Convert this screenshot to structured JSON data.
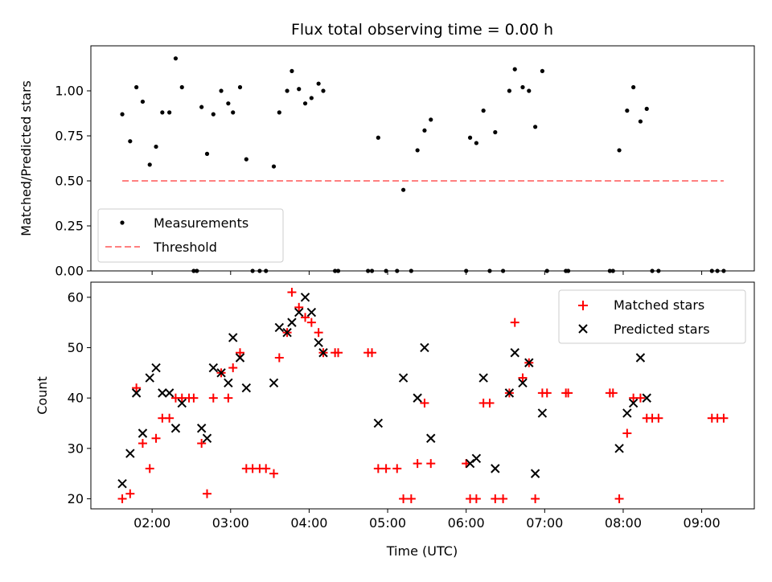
{
  "figure": {
    "title": "Flux total observing time = 0.00 h",
    "xlabel": "Time (UTC)",
    "x_ticks": [
      "02:00",
      "03:00",
      "04:00",
      "05:00",
      "06:00",
      "07:00",
      "08:00",
      "09:00"
    ]
  },
  "chart_data": [
    {
      "type": "scatter",
      "title": "Flux total observing time = 0.00 h",
      "ylabel": "Matched/Predicted stars",
      "xlim": [
        1.22,
        9.67
      ],
      "ylim": [
        0,
        1.25
      ],
      "y_ticks": [
        "0.00",
        "0.25",
        "0.50",
        "0.75",
        "1.00"
      ],
      "legend": {
        "placement": "lower-left",
        "entries": [
          "Measurements",
          "Threshold"
        ]
      },
      "grid": false,
      "series": [
        {
          "name": "Measurements",
          "marker": "dot",
          "color": "#000000",
          "points": [
            [
              1.62,
              0.87
            ],
            [
              1.72,
              0.72
            ],
            [
              1.8,
              1.02
            ],
            [
              1.88,
              0.94
            ],
            [
              1.97,
              0.59
            ],
            [
              2.05,
              0.69
            ],
            [
              2.13,
              0.88
            ],
            [
              2.22,
              0.88
            ],
            [
              2.3,
              1.18
            ],
            [
              2.38,
              1.02
            ],
            [
              2.63,
              0.91
            ],
            [
              2.7,
              0.65
            ],
            [
              2.78,
              0.87
            ],
            [
              2.88,
              1.0
            ],
            [
              2.97,
              0.93
            ],
            [
              3.03,
              0.88
            ],
            [
              3.12,
              1.02
            ],
            [
              3.2,
              0.62
            ],
            [
              3.55,
              0.58
            ],
            [
              3.62,
              0.88
            ],
            [
              3.72,
              1.0
            ],
            [
              3.78,
              1.11
            ],
            [
              3.87,
              1.01
            ],
            [
              3.95,
              0.93
            ],
            [
              4.03,
              0.96
            ],
            [
              4.12,
              1.04
            ],
            [
              4.18,
              1.0
            ],
            [
              4.88,
              0.74
            ],
            [
              5.2,
              0.45
            ],
            [
              5.38,
              0.67
            ],
            [
              5.47,
              0.78
            ],
            [
              5.55,
              0.84
            ],
            [
              6.05,
              0.74
            ],
            [
              6.13,
              0.71
            ],
            [
              6.22,
              0.89
            ],
            [
              6.37,
              0.77
            ],
            [
              6.55,
              1.0
            ],
            [
              6.62,
              1.12
            ],
            [
              6.72,
              1.02
            ],
            [
              6.8,
              1.0
            ],
            [
              6.88,
              0.8
            ],
            [
              6.97,
              1.11
            ],
            [
              7.95,
              0.67
            ],
            [
              8.05,
              0.89
            ],
            [
              8.13,
              1.02
            ],
            [
              8.22,
              0.83
            ],
            [
              8.3,
              0.9
            ],
            [
              2.53,
              0.0
            ],
            [
              2.57,
              0.0
            ],
            [
              3.28,
              0.0
            ],
            [
              3.37,
              0.0
            ],
            [
              3.45,
              0.0
            ],
            [
              4.33,
              0.0
            ],
            [
              4.37,
              0.0
            ],
            [
              4.75,
              0.0
            ],
            [
              4.8,
              0.0
            ],
            [
              4.98,
              0.0
            ],
            [
              5.12,
              0.0
            ],
            [
              5.3,
              0.0
            ],
            [
              6.0,
              0.0
            ],
            [
              6.3,
              0.0
            ],
            [
              6.47,
              0.0
            ],
            [
              7.03,
              0.0
            ],
            [
              7.27,
              0.0
            ],
            [
              7.3,
              0.0
            ],
            [
              7.83,
              0.0
            ],
            [
              7.87,
              0.0
            ],
            [
              8.37,
              0.0
            ],
            [
              8.45,
              0.0
            ],
            [
              9.13,
              0.0
            ],
            [
              9.2,
              0.0
            ],
            [
              9.28,
              0.0
            ]
          ]
        },
        {
          "name": "Threshold",
          "line": "dashed",
          "color": "#ff8080",
          "x": [
            1.62,
            9.28
          ],
          "y": [
            0.5,
            0.5
          ]
        }
      ]
    },
    {
      "type": "scatter",
      "ylabel": "Count",
      "xlim": [
        1.22,
        9.67
      ],
      "ylim": [
        18,
        63
      ],
      "y_ticks": [
        "20",
        "30",
        "40",
        "50",
        "60"
      ],
      "legend": {
        "placement": "top-right",
        "entries": [
          "Matched stars",
          "Predicted stars"
        ]
      },
      "grid": false,
      "series": [
        {
          "name": "Matched stars",
          "marker": "plus",
          "color": "#ff0000",
          "points": [
            [
              1.62,
              20
            ],
            [
              1.72,
              21
            ],
            [
              1.8,
              42
            ],
            [
              1.88,
              31
            ],
            [
              1.97,
              26
            ],
            [
              2.05,
              32
            ],
            [
              2.13,
              36
            ],
            [
              2.22,
              36
            ],
            [
              2.3,
              40
            ],
            [
              2.38,
              40
            ],
            [
              2.47,
              40
            ],
            [
              2.53,
              40
            ],
            [
              2.63,
              31
            ],
            [
              2.7,
              21
            ],
            [
              2.78,
              40
            ],
            [
              2.88,
              45
            ],
            [
              2.97,
              40
            ],
            [
              3.03,
              46
            ],
            [
              3.12,
              49
            ],
            [
              3.2,
              26
            ],
            [
              3.28,
              26
            ],
            [
              3.37,
              26
            ],
            [
              3.45,
              26
            ],
            [
              3.55,
              25
            ],
            [
              3.62,
              48
            ],
            [
              3.72,
              53
            ],
            [
              3.78,
              61
            ],
            [
              3.87,
              58
            ],
            [
              3.95,
              56
            ],
            [
              4.03,
              55
            ],
            [
              4.12,
              53
            ],
            [
              4.18,
              49
            ],
            [
              4.33,
              49
            ],
            [
              4.37,
              49
            ],
            [
              4.75,
              49
            ],
            [
              4.8,
              49
            ],
            [
              4.88,
              26
            ],
            [
              4.98,
              26
            ],
            [
              5.12,
              26
            ],
            [
              5.2,
              20
            ],
            [
              5.3,
              20
            ],
            [
              5.38,
              27
            ],
            [
              5.47,
              39
            ],
            [
              5.55,
              27
            ],
            [
              6.0,
              27
            ],
            [
              6.05,
              20
            ],
            [
              6.13,
              20
            ],
            [
              6.22,
              39
            ],
            [
              6.3,
              39
            ],
            [
              6.37,
              20
            ],
            [
              6.47,
              20
            ],
            [
              6.55,
              41
            ],
            [
              6.62,
              55
            ],
            [
              6.72,
              44
            ],
            [
              6.8,
              47
            ],
            [
              6.88,
              20
            ],
            [
              6.97,
              41
            ],
            [
              7.03,
              41
            ],
            [
              7.27,
              41
            ],
            [
              7.3,
              41
            ],
            [
              7.83,
              41
            ],
            [
              7.87,
              41
            ],
            [
              7.95,
              20
            ],
            [
              8.05,
              33
            ],
            [
              8.13,
              40
            ],
            [
              8.22,
              40
            ],
            [
              8.3,
              36
            ],
            [
              8.37,
              36
            ],
            [
              8.45,
              36
            ],
            [
              9.13,
              36
            ],
            [
              9.2,
              36
            ],
            [
              9.28,
              36
            ]
          ]
        },
        {
          "name": "Predicted stars",
          "marker": "x",
          "color": "#000000",
          "points": [
            [
              1.62,
              23
            ],
            [
              1.72,
              29
            ],
            [
              1.8,
              41
            ],
            [
              1.88,
              33
            ],
            [
              1.97,
              44
            ],
            [
              2.05,
              46
            ],
            [
              2.13,
              41
            ],
            [
              2.22,
              41
            ],
            [
              2.3,
              34
            ],
            [
              2.38,
              39
            ],
            [
              2.63,
              34
            ],
            [
              2.7,
              32
            ],
            [
              2.78,
              46
            ],
            [
              2.88,
              45
            ],
            [
              2.97,
              43
            ],
            [
              3.03,
              52
            ],
            [
              3.12,
              48
            ],
            [
              3.2,
              42
            ],
            [
              3.55,
              43
            ],
            [
              3.62,
              54
            ],
            [
              3.72,
              53
            ],
            [
              3.78,
              55
            ],
            [
              3.87,
              57
            ],
            [
              3.95,
              60
            ],
            [
              4.03,
              57
            ],
            [
              4.12,
              51
            ],
            [
              4.18,
              49
            ],
            [
              4.88,
              35
            ],
            [
              5.2,
              44
            ],
            [
              5.38,
              40
            ],
            [
              5.47,
              50
            ],
            [
              5.55,
              32
            ],
            [
              6.05,
              27
            ],
            [
              6.13,
              28
            ],
            [
              6.22,
              44
            ],
            [
              6.37,
              26
            ],
            [
              6.55,
              41
            ],
            [
              6.62,
              49
            ],
            [
              6.72,
              43
            ],
            [
              6.8,
              47
            ],
            [
              6.88,
              25
            ],
            [
              6.97,
              37
            ],
            [
              7.95,
              30
            ],
            [
              8.05,
              37
            ],
            [
              8.13,
              39
            ],
            [
              8.22,
              48
            ],
            [
              8.3,
              40
            ]
          ]
        }
      ]
    }
  ]
}
